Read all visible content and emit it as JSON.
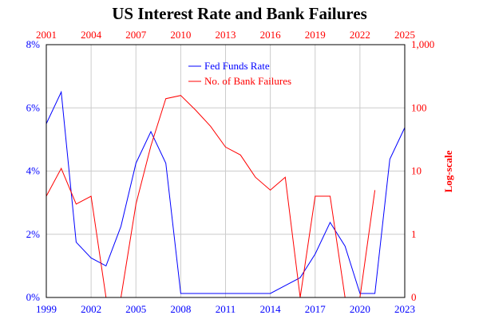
{
  "chart_data": {
    "type": "line",
    "title": "US Interest Rate and Bank Failures",
    "xlabel": "",
    "ylabel": "",
    "y2label": "Log-scale",
    "bottom_axis": {
      "xlim": [
        1999,
        2023
      ],
      "ticks": [
        "1999",
        "2002",
        "2005",
        "2008",
        "2011",
        "2014",
        "2017",
        "2020",
        "2023"
      ],
      "color": "#0000ff"
    },
    "top_axis": {
      "xlim": [
        2001,
        2025
      ],
      "ticks": [
        "2001",
        "2004",
        "2007",
        "2010",
        "2013",
        "2016",
        "2019",
        "2022",
        "2025"
      ],
      "color": "#ff0000"
    },
    "left_axis": {
      "ylim": [
        0,
        8
      ],
      "ticks": [
        0,
        2,
        4,
        6,
        8
      ],
      "tick_labels": [
        "0%",
        "2%",
        "4%",
        "6%",
        "8%"
      ],
      "color": "#0000ff"
    },
    "right_axis": {
      "scale": "log",
      "ticks": [
        0,
        1,
        10,
        100,
        1000
      ],
      "tick_labels": [
        "0",
        "1",
        "10",
        "100",
        "1,000"
      ],
      "color": "#ff0000"
    },
    "grid": true,
    "legend_position": "top-center",
    "series": [
      {
        "name": "Fed Funds Rate",
        "color": "#0000ff",
        "axis": "bottom-left",
        "x": [
          1999,
          2000,
          2001,
          2002,
          2003,
          2004,
          2005,
          2006,
          2007,
          2008,
          2009,
          2010,
          2011,
          2012,
          2013,
          2014,
          2015,
          2016,
          2017,
          2018,
          2019,
          2020,
          2021,
          2022,
          2023
        ],
        "y": [
          5.5,
          6.5,
          1.75,
          1.25,
          1.0,
          2.25,
          4.25,
          5.25,
          4.25,
          0.125,
          0.125,
          0.125,
          0.125,
          0.125,
          0.125,
          0.125,
          0.375,
          0.625,
          1.375,
          2.375,
          1.625,
          0.125,
          0.125,
          4.375,
          5.375
        ]
      },
      {
        "name": "No. of Bank Failures",
        "color": "#ff0000",
        "axis": "top-right",
        "x": [
          2001,
          2002,
          2003,
          2004,
          2005,
          2006,
          2007,
          2008,
          2009,
          2010,
          2011,
          2012,
          2013,
          2014,
          2015,
          2016,
          2017,
          2018,
          2019,
          2020,
          2021,
          2022,
          2023
        ],
        "y": [
          4,
          11,
          3,
          4,
          0,
          0,
          3,
          25,
          140,
          157,
          92,
          51,
          24,
          18,
          8,
          5,
          8,
          0,
          4,
          4,
          0,
          0,
          5
        ]
      }
    ]
  }
}
